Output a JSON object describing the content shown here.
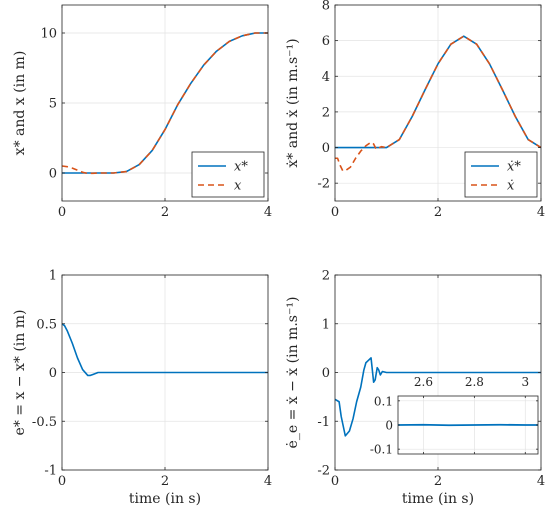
{
  "chart_data": [
    {
      "id": "position",
      "type": "line",
      "ylabel": "x* and x (in m)",
      "xlabel": "",
      "xlim": [
        0,
        4
      ],
      "ylim": [
        -2,
        12
      ],
      "xticks": [
        0,
        2,
        4
      ],
      "yticks": [
        0,
        5,
        10
      ],
      "xtick_labels": [
        "0",
        "2",
        "4"
      ],
      "ytick_labels": [
        "0",
        "5",
        "10"
      ],
      "grid": true,
      "legend": "bottom-right",
      "legend_entries": [
        "x*",
        "x"
      ],
      "series": [
        {
          "name": "x*",
          "style": "solid",
          "color": "#0072BD",
          "x": [
            0,
            0.5,
            1.0,
            1.25,
            1.5,
            1.75,
            2.0,
            2.25,
            2.5,
            2.75,
            3.0,
            3.25,
            3.5,
            3.75,
            4.0
          ],
          "y": [
            0,
            0,
            0,
            0.1,
            0.6,
            1.6,
            3.1,
            4.9,
            6.4,
            7.7,
            8.7,
            9.4,
            9.8,
            10.0,
            10.0
          ]
        },
        {
          "name": "x",
          "style": "dashed",
          "color": "#D95319",
          "x": [
            0,
            0.1,
            0.2,
            0.3,
            0.4,
            0.5,
            0.6,
            0.7,
            0.8,
            1.0,
            1.25,
            1.5,
            1.75,
            2.0,
            2.25,
            2.5,
            2.75,
            3.0,
            3.25,
            3.5,
            3.75,
            4.0
          ],
          "y": [
            0.5,
            0.45,
            0.35,
            0.2,
            0.05,
            -0.03,
            -0.02,
            0,
            0,
            0,
            0.1,
            0.6,
            1.6,
            3.1,
            4.9,
            6.4,
            7.7,
            8.7,
            9.4,
            9.8,
            10.0,
            10.0
          ]
        }
      ]
    },
    {
      "id": "velocity",
      "type": "line",
      "ylabel": "ẋ* and ẋ (in m.s⁻¹)",
      "xlabel": "",
      "xlim": [
        0,
        4
      ],
      "ylim": [
        -3,
        8
      ],
      "xticks": [
        0,
        2,
        4
      ],
      "yticks": [
        -2,
        0,
        2,
        4,
        6,
        8
      ],
      "xtick_labels": [
        "0",
        "2",
        "4"
      ],
      "ytick_labels": [
        "-2",
        "0",
        "2",
        "4",
        "6",
        "8"
      ],
      "grid": true,
      "legend": "bottom-right",
      "legend_entries": [
        "ẋ*",
        "ẋ"
      ],
      "series": [
        {
          "name": "ẋ*",
          "style": "solid",
          "color": "#0072BD",
          "x": [
            0,
            0.5,
            1.0,
            1.25,
            1.5,
            1.75,
            2.0,
            2.25,
            2.5,
            2.75,
            3.0,
            3.25,
            3.5,
            3.75,
            4.0
          ],
          "y": [
            0,
            0,
            0,
            0.45,
            1.75,
            3.25,
            4.7,
            5.8,
            6.25,
            5.8,
            4.7,
            3.25,
            1.75,
            0.45,
            0
          ]
        },
        {
          "name": "ẋ",
          "style": "dashed",
          "color": "#D95319",
          "x": [
            0,
            0.05,
            0.1,
            0.15,
            0.2,
            0.3,
            0.4,
            0.5,
            0.6,
            0.7,
            0.75,
            0.8,
            0.9,
            1.0,
            1.25,
            1.5,
            1.75,
            2.0,
            2.25,
            2.5,
            2.75,
            3.0,
            3.25,
            3.5,
            3.75,
            4.0
          ],
          "y": [
            -0.6,
            -0.6,
            -1.0,
            -1.3,
            -1.3,
            -1.1,
            -0.6,
            -0.2,
            0.1,
            0.3,
            0.2,
            -0.1,
            0.05,
            0,
            0.45,
            1.75,
            3.25,
            4.7,
            5.8,
            6.25,
            5.8,
            4.7,
            3.25,
            1.75,
            0.45,
            0
          ]
        }
      ]
    },
    {
      "id": "position_error",
      "type": "line",
      "ylabel": "e* = x − x* (in m)",
      "xlabel": "time (in s)",
      "xlim": [
        0,
        4
      ],
      "ylim": [
        -1,
        1
      ],
      "xticks": [
        0,
        2,
        4
      ],
      "yticks": [
        -1,
        -0.5,
        0,
        0.5,
        1
      ],
      "xtick_labels": [
        "0",
        "2",
        "4"
      ],
      "ytick_labels": [
        "-1",
        "-0.5",
        "0",
        "0.5",
        "1"
      ],
      "grid": true,
      "series": [
        {
          "name": "",
          "style": "solid",
          "color": "#0072BD",
          "x": [
            0,
            0.05,
            0.1,
            0.2,
            0.3,
            0.4,
            0.5,
            0.55,
            0.6,
            0.7,
            0.8,
            1.0,
            2.0,
            3.0,
            4.0
          ],
          "y": [
            0.5,
            0.48,
            0.43,
            0.3,
            0.15,
            0.03,
            -0.03,
            -0.03,
            -0.02,
            0.0,
            0.0,
            0.0,
            0.0,
            0.0,
            0.0
          ]
        }
      ]
    },
    {
      "id": "velocity_error",
      "type": "line",
      "ylabel": "ė_e = ẋ − ẋ (in m.s⁻¹)",
      "xlabel": "time (in s)",
      "xlim": [
        0,
        4
      ],
      "ylim": [
        -2,
        2
      ],
      "xticks": [
        0,
        2,
        4
      ],
      "yticks": [
        -2,
        -1,
        0,
        1,
        2
      ],
      "xtick_labels": [
        "0",
        "2",
        "4"
      ],
      "ytick_labels": [
        "-2",
        "-1",
        "0",
        "1",
        "2"
      ],
      "grid": true,
      "series": [
        {
          "name": "",
          "style": "solid",
          "color": "#0072BD",
          "x": [
            0,
            0.08,
            0.12,
            0.2,
            0.28,
            0.35,
            0.42,
            0.5,
            0.56,
            0.6,
            0.65,
            0.7,
            0.75,
            0.78,
            0.82,
            0.85,
            0.88,
            0.92,
            1.0,
            1.5,
            2.0,
            3.0,
            4.0
          ],
          "y": [
            -0.55,
            -0.6,
            -0.9,
            -1.3,
            -1.2,
            -0.95,
            -0.6,
            -0.3,
            0.05,
            0.2,
            0.25,
            0.3,
            -0.2,
            -0.15,
            0.1,
            0.05,
            -0.05,
            0.02,
            0.0,
            0.0,
            0.0,
            0.0,
            0.0
          ]
        }
      ],
      "inset": {
        "xlim": [
          2.5,
          3.05
        ],
        "ylim": [
          -0.12,
          0.12
        ],
        "xticks": [
          2.6,
          2.8,
          3
        ],
        "yticks": [
          -0.1,
          0,
          0.1
        ],
        "xtick_labels": [
          "2.6",
          "2.8",
          "3"
        ],
        "ytick_labels": [
          "-0.1",
          "0",
          "0.1"
        ],
        "grid": true,
        "series": [
          {
            "name": "",
            "style": "solid",
            "color": "#0072BD",
            "x": [
              2.5,
              2.6,
              2.7,
              2.8,
              2.9,
              3.0,
              3.05
            ],
            "y": [
              0.0,
              0.001,
              -0.001,
              0.0,
              0.001,
              0.0,
              0.0
            ]
          }
        ]
      }
    }
  ]
}
